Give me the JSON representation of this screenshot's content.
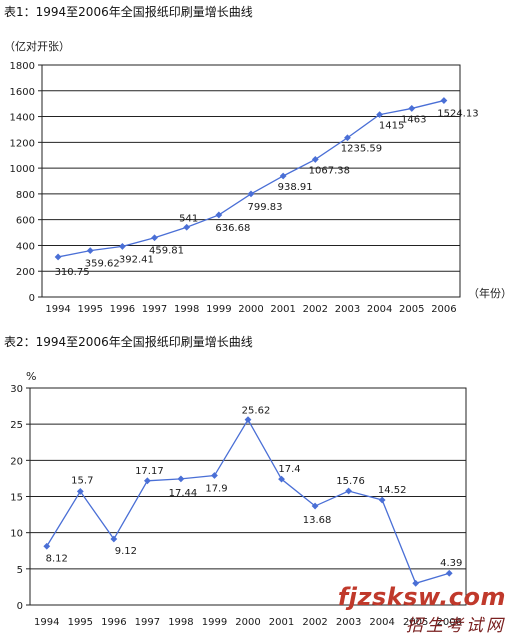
{
  "chart_data": [
    {
      "type": "line",
      "title": "表1：1994至2006年全国报纸印刷量增长曲线",
      "ylabel": "（亿对开张）",
      "xlabel": "（年份）",
      "x": [
        "1994",
        "1995",
        "1996",
        "1997",
        "1998",
        "1999",
        "2000",
        "2001",
        "2002",
        "2003",
        "2004",
        "2005",
        "2006"
      ],
      "values": [
        310.75,
        359.62,
        392.41,
        459.81,
        541,
        636.68,
        799.83,
        938.91,
        1067.38,
        1235.59,
        1415,
        1463,
        1524.13
      ],
      "data_labels": [
        "310.75",
        "359.62",
        "392.41",
        "459.81",
        "541",
        "636.68",
        "799.83",
        "938.91",
        "1067.38",
        "1235.59",
        "1415",
        "1463",
        "1524.13"
      ],
      "ylim": [
        0,
        1800
      ],
      "yticks": [
        "0",
        "200",
        "400",
        "600",
        "800",
        "1000",
        "1200",
        "1400",
        "1600",
        "1800"
      ],
      "grid": "horizontal",
      "color": "#4a6fd6"
    },
    {
      "type": "line",
      "title": "表2：1994至2006年全国报纸印刷量增长曲线",
      "ylabel": "%",
      "x": [
        "1994",
        "1995",
        "1996",
        "1997",
        "1998",
        "1999",
        "2000",
        "2001",
        "2002",
        "2003",
        "2004",
        "2005",
        "2006"
      ],
      "values": [
        8.12,
        15.7,
        9.12,
        17.17,
        17.44,
        17.9,
        25.62,
        17.4,
        13.68,
        15.76,
        14.52,
        3.0,
        4.39
      ],
      "data_labels": [
        "8.12",
        "15.7",
        "9.12",
        "17.17",
        "17.44",
        "17.9",
        "25.62",
        "17.4",
        "13.68",
        "15.76",
        "14.52",
        "",
        "4.39"
      ],
      "ylim": [
        0,
        30
      ],
      "yticks": [
        "0",
        "5",
        "10",
        "15",
        "20",
        "25",
        "30"
      ],
      "grid": "horizontal",
      "color": "#4a6fd6"
    }
  ],
  "watermark": {
    "url": "fjzsksw.com",
    "text": "招生考试网"
  }
}
